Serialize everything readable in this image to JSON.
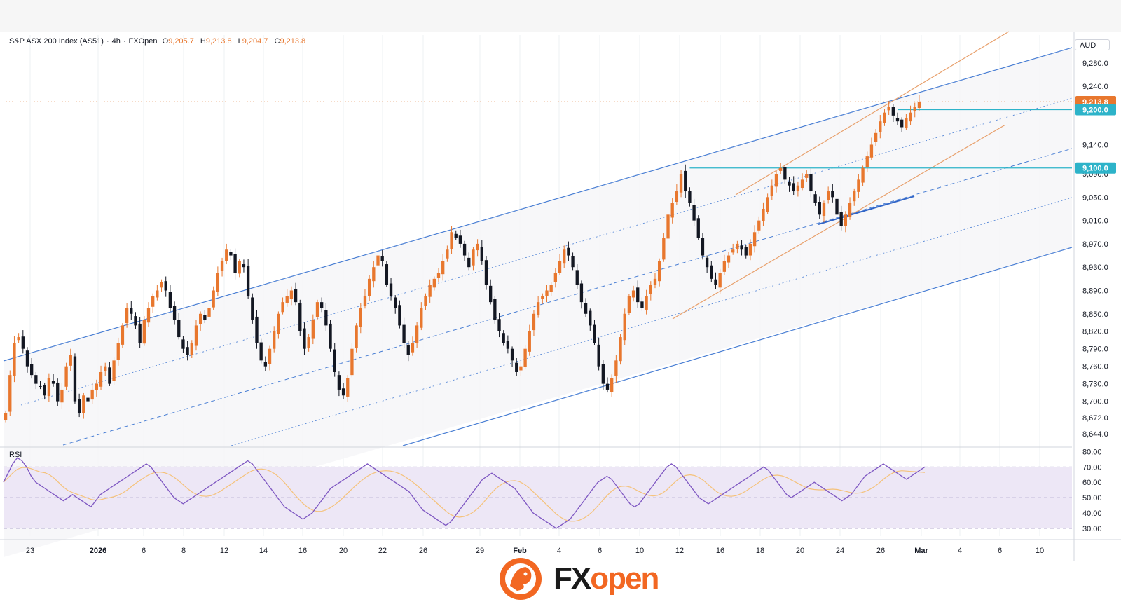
{
  "header": {
    "symbol": "S&P ASX 200 Index (AS51)",
    "interval": "4h",
    "source": "FXOpen",
    "open_label": "O",
    "open": "9,205.7",
    "high_label": "H",
    "high": "9,213.8",
    "low_label": "L",
    "low": "9,204.7",
    "close_label": "C",
    "close": "9,213.8"
  },
  "currency": "AUD",
  "rsi_label": "RSI",
  "colors": {
    "up": "#e8772e",
    "down": "#131722",
    "channel": "#4a7fd4",
    "orange_channel": "#e8a06c",
    "level": "#2db3c9",
    "rsi": "#7e57c2",
    "rsi_ma": "#f5c27a",
    "rsi_band": "#ede7f6"
  },
  "logo": {
    "text_a": "FX",
    "text_b": "open"
  },
  "chart_data": [
    {
      "type": "candlestick",
      "title": "",
      "y_unit": "AUD",
      "ylim": [
        8625,
        9310
      ],
      "y_ticks": [
        "9,280.0",
        "9,240.0",
        "9,200.0",
        "9,140.0",
        "9,090.0",
        "9,050.0",
        "9,010.0",
        "8,970.0",
        "8,930.0",
        "8,890.0",
        "8,850.0",
        "8,820.0",
        "8,790.0",
        "8,760.0",
        "8,730.0",
        "8,700.0",
        "8,672.0",
        "8,644.0"
      ],
      "y_tick_values": [
        9280,
        9240,
        9200,
        9140,
        9090,
        9050,
        9010,
        8970,
        8930,
        8890,
        8850,
        8820,
        8790,
        8760,
        8730,
        8700,
        8672,
        8644
      ],
      "x_ticks": [
        "23",
        "2026",
        "6",
        "8",
        "12",
        "14",
        "16",
        "20",
        "22",
        "26",
        "29",
        "Feb",
        "4",
        "6",
        "10",
        "12",
        "16",
        "18",
        "20",
        "24",
        "26",
        "Mar",
        "4",
        "6",
        "10"
      ],
      "price_labels": [
        {
          "text": "9,213.8",
          "value": 9213.8,
          "color": "#e8772e"
        },
        {
          "text": "9,200.0",
          "value": 9200,
          "color": "#2db3c9"
        },
        {
          "text": "9,100.0",
          "value": 9100,
          "color": "#2db3c9"
        }
      ],
      "horizontal_levels": [
        {
          "value": 9200,
          "from_bar": 206
        },
        {
          "value": 9100,
          "from_bar": 158
        }
      ],
      "candles_approx_path": [
        8680,
        8745,
        8800,
        8810,
        8790,
        8760,
        8745,
        8730,
        8725,
        8710,
        8740,
        8730,
        8700,
        8720,
        8760,
        8780,
        8700,
        8680,
        8710,
        8700,
        8720,
        8730,
        8750,
        8760,
        8730,
        8770,
        8800,
        8830,
        8860,
        8850,
        8830,
        8800,
        8840,
        8860,
        8880,
        8890,
        8905,
        8890,
        8860,
        8840,
        8810,
        8790,
        8780,
        8800,
        8830,
        8850,
        8840,
        8860,
        8890,
        8920,
        8940,
        8960,
        8950,
        8920,
        8940,
        8930,
        8880,
        8840,
        8800,
        8770,
        8760,
        8790,
        8820,
        8850,
        8870,
        8880,
        8890,
        8870,
        8820,
        8790,
        8810,
        8840,
        8870,
        8860,
        8830,
        8790,
        8750,
        8720,
        8710,
        8740,
        8790,
        8830,
        8860,
        8880,
        8910,
        8930,
        8950,
        8940,
        8900,
        8880,
        8860,
        8830,
        8800,
        8780,
        8800,
        8830,
        8860,
        8880,
        8900,
        8910,
        8920,
        8940,
        8960,
        8990,
        8980,
        8970,
        8950,
        8930,
        8960,
        8970,
        8940,
        8900,
        8870,
        8840,
        8820,
        8800,
        8790,
        8770,
        8750,
        8760,
        8790,
        8820,
        8850,
        8870,
        8880,
        8890,
        8900,
        8920,
        8940,
        8960,
        8950,
        8930,
        8900,
        8870,
        8850,
        8830,
        8800,
        8760,
        8730,
        8720,
        8740,
        8770,
        8810,
        8850,
        8880,
        8890,
        8870,
        8860,
        8880,
        8900,
        8910,
        8940,
        8980,
        9020,
        9040,
        9060,
        9090,
        9060,
        9040,
        9010,
        8980,
        8950,
        8930,
        8910,
        8900,
        8920,
        8940,
        8950,
        8960,
        8970,
        8960,
        8950,
        8970,
        8990,
        9010,
        9030,
        9050,
        9070,
        9090,
        9100,
        9080,
        9070,
        9060,
        9070,
        9080,
        9090,
        9060,
        9040,
        9020,
        9040,
        9060,
        9050,
        9020,
        9000,
        9020,
        9040,
        9060,
        9080,
        9100,
        9120,
        9140,
        9160,
        9180,
        9195,
        9205,
        9190,
        9180,
        9170,
        9185,
        9195,
        9205,
        9213.8
      ]
    },
    {
      "type": "line",
      "title": "RSI",
      "ylim": [
        25,
        82
      ],
      "y_ticks": [
        "80.00",
        "70.00",
        "60.00",
        "50.00",
        "40.00",
        "30.00"
      ],
      "y_tick_values": [
        80,
        70,
        60,
        50,
        40,
        30
      ],
      "bands": [
        70,
        50,
        30
      ],
      "series": [
        {
          "values": [
            60,
            66,
            72,
            76,
            74,
            70,
            64,
            60,
            58,
            56,
            54,
            52,
            50,
            48,
            50,
            52,
            50,
            48,
            46,
            44,
            48,
            52,
            54,
            56,
            58,
            60,
            62,
            64,
            66,
            68,
            70,
            72,
            70,
            66,
            62,
            58,
            54,
            50,
            48,
            46,
            48,
            50,
            52,
            54,
            56,
            58,
            60,
            62,
            64,
            66,
            68,
            70,
            72,
            74,
            72,
            68,
            64,
            60,
            56,
            52,
            48,
            44,
            42,
            40,
            38,
            36,
            38,
            40,
            44,
            48,
            52,
            56,
            58,
            60,
            62,
            64,
            66,
            68,
            70,
            72,
            70,
            68,
            66,
            64,
            62,
            60,
            58,
            56,
            54,
            50,
            46,
            42,
            40,
            38,
            36,
            34,
            32,
            34,
            38,
            42,
            46,
            50,
            54,
            58,
            62,
            64,
            66,
            64,
            62,
            60,
            58,
            56,
            52,
            48,
            44,
            40,
            38,
            36,
            34,
            32,
            30,
            32,
            34,
            36,
            40,
            44,
            48,
            52,
            56,
            60,
            62,
            64,
            62,
            58,
            54,
            50,
            46,
            44,
            46,
            50,
            54,
            58,
            62,
            66,
            70,
            72,
            70,
            66,
            62,
            58,
            54,
            50,
            48,
            46,
            48,
            50,
            52,
            54,
            56,
            58,
            60,
            62,
            64,
            66,
            68,
            70,
            68,
            64,
            60,
            56,
            52,
            50,
            52,
            54,
            56,
            58,
            60,
            58,
            56,
            54,
            52,
            50,
            48,
            50,
            52,
            56,
            60,
            64,
            66,
            68,
            70,
            72,
            70,
            68,
            66,
            64,
            62,
            64,
            66,
            68,
            70
          ]
        }
      ]
    }
  ]
}
